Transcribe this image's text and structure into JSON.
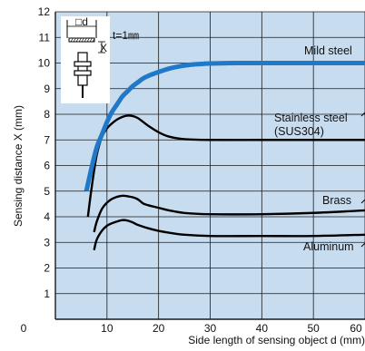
{
  "chart_data": {
    "type": "line",
    "title": "",
    "xlabel": "Side length of sensing object d (mm)",
    "ylabel": "Sensing distance X (mm)",
    "xlim": [
      0,
      60
    ],
    "ylim": [
      0,
      12
    ],
    "x_ticks": [
      "0",
      "10",
      "20",
      "30",
      "40",
      "50",
      "60"
    ],
    "y_ticks": [
      "1",
      "2",
      "3",
      "4",
      "5",
      "6",
      "7",
      "8",
      "9",
      "10",
      "11",
      "12"
    ],
    "grid": true,
    "colors": {
      "background": "#c8dcf0",
      "grid": "#1a1a1a",
      "mild_steel": "#1f78c8",
      "other_series": "#000000"
    },
    "series": [
      {
        "name": "Mild steel",
        "points": [
          [
            6,
            5.0
          ],
          [
            7,
            5.9
          ],
          [
            8,
            6.7
          ],
          [
            9,
            7.2
          ],
          [
            10,
            7.7
          ],
          [
            11,
            8.1
          ],
          [
            12,
            8.4
          ],
          [
            13,
            8.7
          ],
          [
            14,
            8.9
          ],
          [
            15,
            9.1
          ],
          [
            16,
            9.25
          ],
          [
            17,
            9.4
          ],
          [
            18,
            9.5
          ],
          [
            20,
            9.65
          ],
          [
            22,
            9.78
          ],
          [
            24,
            9.87
          ],
          [
            26,
            9.93
          ],
          [
            28,
            9.96
          ],
          [
            30,
            9.98
          ],
          [
            35,
            10.0
          ],
          [
            40,
            10.0
          ],
          [
            50,
            10.0
          ],
          [
            60,
            10.0
          ]
        ]
      },
      {
        "name": "Stainless steel (SUS304)",
        "points": [
          [
            6.3,
            4.0
          ],
          [
            7,
            5.1
          ],
          [
            8,
            6.4
          ],
          [
            9,
            7.1
          ],
          [
            10,
            7.45
          ],
          [
            11,
            7.65
          ],
          [
            12,
            7.8
          ],
          [
            13,
            7.9
          ],
          [
            14,
            7.95
          ],
          [
            15,
            7.93
          ],
          [
            16,
            7.85
          ],
          [
            17,
            7.7
          ],
          [
            18,
            7.55
          ],
          [
            20,
            7.3
          ],
          [
            22,
            7.13
          ],
          [
            25,
            7.03
          ],
          [
            30,
            7.0
          ],
          [
            40,
            7.0
          ],
          [
            50,
            7.0
          ],
          [
            60,
            7.0
          ]
        ]
      },
      {
        "name": "Brass",
        "points": [
          [
            7.5,
            3.4
          ],
          [
            8,
            3.8
          ],
          [
            9,
            4.3
          ],
          [
            10,
            4.55
          ],
          [
            11,
            4.7
          ],
          [
            12,
            4.78
          ],
          [
            13,
            4.82
          ],
          [
            14,
            4.8
          ],
          [
            15,
            4.76
          ],
          [
            16,
            4.68
          ],
          [
            17,
            4.52
          ],
          [
            18,
            4.45
          ],
          [
            20,
            4.35
          ],
          [
            22,
            4.25
          ],
          [
            25,
            4.15
          ],
          [
            30,
            4.1
          ],
          [
            40,
            4.1
          ],
          [
            50,
            4.15
          ],
          [
            60,
            4.25
          ]
        ]
      },
      {
        "name": "Aluminum",
        "points": [
          [
            7.5,
            2.7
          ],
          [
            8,
            3.1
          ],
          [
            9,
            3.45
          ],
          [
            10,
            3.65
          ],
          [
            11,
            3.75
          ],
          [
            12,
            3.82
          ],
          [
            13,
            3.87
          ],
          [
            14,
            3.85
          ],
          [
            15,
            3.78
          ],
          [
            16,
            3.68
          ],
          [
            18,
            3.55
          ],
          [
            20,
            3.45
          ],
          [
            22,
            3.38
          ],
          [
            25,
            3.3
          ],
          [
            30,
            3.25
          ],
          [
            40,
            3.25
          ],
          [
            50,
            3.25
          ],
          [
            60,
            3.3
          ]
        ]
      }
    ],
    "inset": {
      "label_d": "□d",
      "label_x": "X",
      "thickness": "t=1㎜"
    }
  }
}
